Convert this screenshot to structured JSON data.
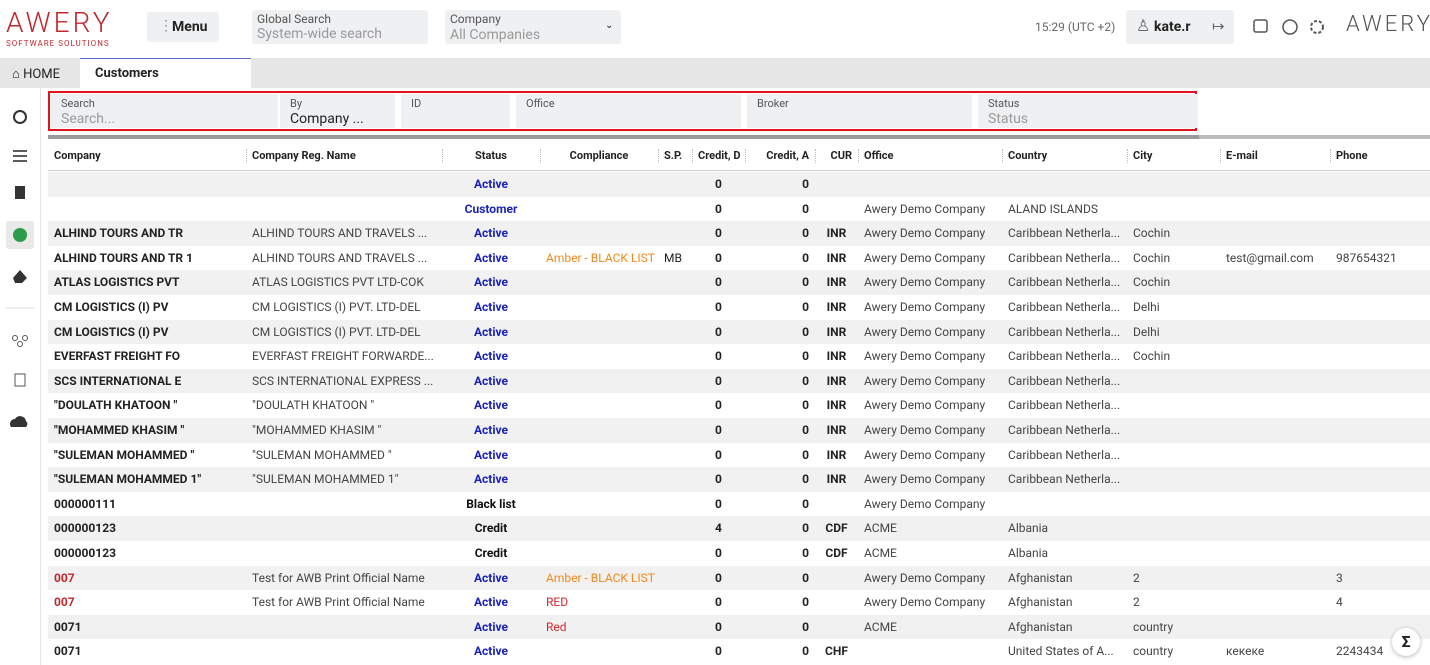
{
  "header": {
    "logo": "AWERY",
    "logo_sub": "SOFTWARE SOLUTIONS",
    "menu": "Menu",
    "global_search_label": "Global Search",
    "global_search_placeholder": "System-wide search",
    "company_label": "Company",
    "company_value": "All Companies",
    "time": "15:29 (UTC +2)",
    "user": "kate.r",
    "brand": "AWERY"
  },
  "tabs": {
    "home": "HOME",
    "active": "Customers"
  },
  "filters": [
    {
      "label": "Search",
      "value": "Search..."
    },
    {
      "label": "By",
      "value": "Company ..."
    },
    {
      "label": "ID"
    },
    {
      "label": "Office"
    },
    {
      "label": "Broker"
    },
    {
      "label": "Status",
      "value": "Status"
    }
  ],
  "table": {
    "columns": [
      "Company",
      "Company Reg. Name",
      "Status",
      "Compliance",
      "S.P.",
      "Credit, D",
      "Credit, A",
      "CUR",
      "Office",
      "Country",
      "City",
      "E-mail",
      "Phone"
    ],
    "rows": [
      [
        null,
        null,
        "Active",
        null,
        null,
        0,
        0,
        null,
        null,
        null,
        null,
        null,
        null
      ],
      [
        null,
        null,
        "Customer",
        null,
        null,
        0,
        0,
        null,
        "Awery Demo Company",
        "ALAND ISLANDS",
        null,
        null,
        null
      ],
      [
        "ALHIND TOURS AND TR",
        "ALHIND TOURS AND TRAVELS ...",
        "Active",
        null,
        null,
        0,
        0,
        "INR",
        "Awery Demo Company",
        "Caribbean Netherla...",
        "Cochin",
        null,
        null
      ],
      [
        "ALHIND TOURS AND TR 1",
        "ALHIND TOURS AND TRAVELS ...",
        "Active",
        "Amber - BLACK LIST",
        "MB",
        0,
        0,
        "INR",
        "Awery Demo Company",
        "Caribbean Netherla...",
        "Cochin",
        "test@gmail.com",
        "987654321"
      ],
      [
        "ATLAS LOGISTICS PVT",
        "ATLAS LOGISTICS PVT LTD-COK",
        "Active",
        null,
        null,
        0,
        0,
        "INR",
        "Awery Demo Company",
        "Caribbean Netherla...",
        "Cochin",
        null,
        null
      ],
      [
        "CM LOGISTICS (I) PV",
        "CM LOGISTICS (I) PVT. LTD-DEL",
        "Active",
        null,
        null,
        0,
        0,
        "INR",
        "Awery Demo Company",
        "Caribbean Netherla...",
        "Delhi",
        null,
        null
      ],
      [
        "CM LOGISTICS (I) PV",
        "CM LOGISTICS (I) PVT. LTD-DEL",
        "Active",
        null,
        null,
        0,
        0,
        "INR",
        "Awery Demo Company",
        "Caribbean Netherla...",
        "Delhi",
        null,
        null
      ],
      [
        "EVERFAST FREIGHT FO",
        "EVERFAST FREIGHT FORWARDE...",
        "Active",
        null,
        null,
        0,
        0,
        "INR",
        "Awery Demo Company",
        "Caribbean Netherla...",
        "Cochin",
        null,
        null
      ],
      [
        "SCS INTERNATIONAL E",
        "SCS INTERNATIONAL EXPRESS ...",
        "Active",
        null,
        null,
        0,
        0,
        "INR",
        "Awery Demo Company",
        "Caribbean Netherla...",
        null,
        null,
        null
      ],
      [
        "\"DOULATH KHATOON \"",
        "\"DOULATH KHATOON \"",
        "Active",
        null,
        null,
        0,
        0,
        "INR",
        "Awery Demo Company",
        "Caribbean Netherla...",
        null,
        null,
        null
      ],
      [
        "\"MOHAMMED KHASIM \"",
        "\"MOHAMMED KHASIM \"",
        "Active",
        null,
        null,
        0,
        0,
        "INR",
        "Awery Demo Company",
        "Caribbean Netherla...",
        null,
        null,
        null
      ],
      [
        "\"SULEMAN MOHAMMED \"",
        "\"SULEMAN MOHAMMED \"",
        "Active",
        null,
        null,
        0,
        0,
        "INR",
        "Awery Demo Company",
        "Caribbean Netherla...",
        null,
        null,
        null
      ],
      [
        "\"SULEMAN MOHAMMED 1\"",
        "\"SULEMAN MOHAMMED 1\"",
        "Active",
        null,
        null,
        0,
        0,
        "INR",
        "Awery Demo Company",
        "Caribbean Netherla...",
        null,
        null,
        null
      ],
      [
        "000000111",
        null,
        "Black list",
        null,
        null,
        0,
        0,
        null,
        "Awery Demo Company",
        null,
        null,
        null,
        null
      ],
      [
        "000000123",
        null,
        "Credit",
        null,
        null,
        4,
        0,
        "CDF",
        "ACME",
        "Albania",
        null,
        null,
        null
      ],
      [
        "000000123",
        null,
        "Credit",
        null,
        null,
        0,
        0,
        "CDF",
        "ACME",
        "Albania",
        null,
        null,
        null
      ],
      [
        "007",
        "Test for AWB Print Official Name",
        "Active",
        "Amber - BLACK LIST",
        null,
        0,
        0,
        null,
        "Awery Demo Company",
        "Afghanistan",
        "2",
        null,
        "3"
      ],
      [
        "007",
        "Test for AWB Print Official Name",
        "Active",
        "RED",
        null,
        0,
        0,
        null,
        "Awery Demo Company",
        "Afghanistan",
        "2",
        null,
        "4"
      ],
      [
        "0071",
        null,
        "Active",
        "Red",
        null,
        0,
        0,
        null,
        "ACME",
        "Afghanistan",
        "country",
        null,
        null
      ],
      [
        "0071",
        null,
        "Active",
        null,
        null,
        0,
        0,
        "CHF",
        null,
        "United States of A...",
        "country",
        "кекеке",
        "2243434"
      ]
    ]
  }
}
